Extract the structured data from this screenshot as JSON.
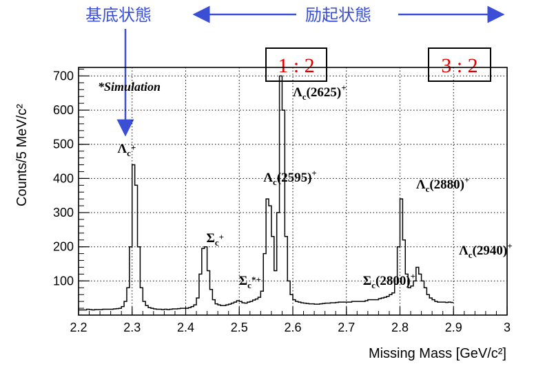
{
  "colors": {
    "annotation": "#3a4fd6",
    "ratio": "#e00000",
    "hist": "#000000",
    "grid": "#000000"
  },
  "annotations": {
    "ground_state": "基底状態",
    "excited_states": "励起状態",
    "simulation": "*Simulation",
    "ratio_left": "1 : 2",
    "ratio_right": "3 : 2"
  },
  "chart_data": {
    "type": "histogram",
    "xlabel": "Missing Mass [GeV/c²]",
    "ylabel": "Counts/5 MeV/c²",
    "xlim": [
      2.2,
      3.0
    ],
    "ylim": [
      0,
      725
    ],
    "grid": true,
    "xticks": [
      "2.2",
      "2.3",
      "2.4",
      "2.5",
      "2.6",
      "2.7",
      "2.8",
      "2.9",
      "3"
    ],
    "yticks": [
      "100",
      "200",
      "300",
      "400",
      "500",
      "600",
      "700"
    ],
    "bin_width": 0.005,
    "bin_start": 2.2,
    "counts": [
      15,
      15,
      15,
      17,
      16,
      15,
      16,
      16,
      16,
      17,
      17,
      17,
      17,
      18,
      19,
      20,
      25,
      40,
      80,
      200,
      440,
      380,
      200,
      80,
      40,
      28,
      22,
      20,
      18,
      17,
      17,
      16,
      17,
      16,
      17,
      18,
      18,
      19,
      20,
      20,
      20,
      22,
      25,
      30,
      50,
      120,
      195,
      200,
      130,
      75,
      45,
      33,
      30,
      28,
      28,
      30,
      32,
      35,
      38,
      42,
      40,
      36,
      35,
      38,
      40,
      44,
      47,
      52,
      70,
      180,
      340,
      320,
      230,
      130,
      300,
      700,
      600,
      230,
      100,
      60,
      45,
      40,
      38,
      36,
      35,
      34,
      33,
      33,
      32,
      32,
      33,
      34,
      35,
      35,
      36,
      36,
      37,
      38,
      38,
      38,
      38,
      38,
      40,
      40,
      40,
      40,
      40,
      42,
      45,
      45,
      45,
      45,
      48,
      50,
      52,
      55,
      60,
      65,
      90,
      200,
      340,
      220,
      120,
      80,
      85,
      100,
      140,
      120,
      100,
      80,
      60,
      50,
      45,
      40,
      38,
      38,
      38,
      37,
      38,
      37
    ],
    "peak_labels": [
      {
        "name": "Λ",
        "sub": "c",
        "sup": "+",
        "x": 2.29
      },
      {
        "name": "Σ",
        "sub": "c",
        "sup": "+",
        "x": 2.455
      },
      {
        "name": "Σ",
        "sub": "c",
        "sup": "*+",
        "x": 2.52
      },
      {
        "name": "Λ",
        "sub": "c",
        "paren": "(2595)",
        "sup": "+",
        "x": 2.595
      },
      {
        "name": "Λ",
        "sub": "c",
        "paren": "(2625)",
        "sup": "+",
        "x": 2.65
      },
      {
        "name": "Σ",
        "sub": "c",
        "paren": "(2800)",
        "sup": "+",
        "x": 2.78
      },
      {
        "name": "Λ",
        "sub": "c",
        "paren": "(2880)",
        "sup": "+",
        "x": 2.88
      },
      {
        "name": "Λ",
        "sub": "c",
        "paren": "(2940)",
        "sup": "+",
        "x": 2.96
      }
    ]
  }
}
